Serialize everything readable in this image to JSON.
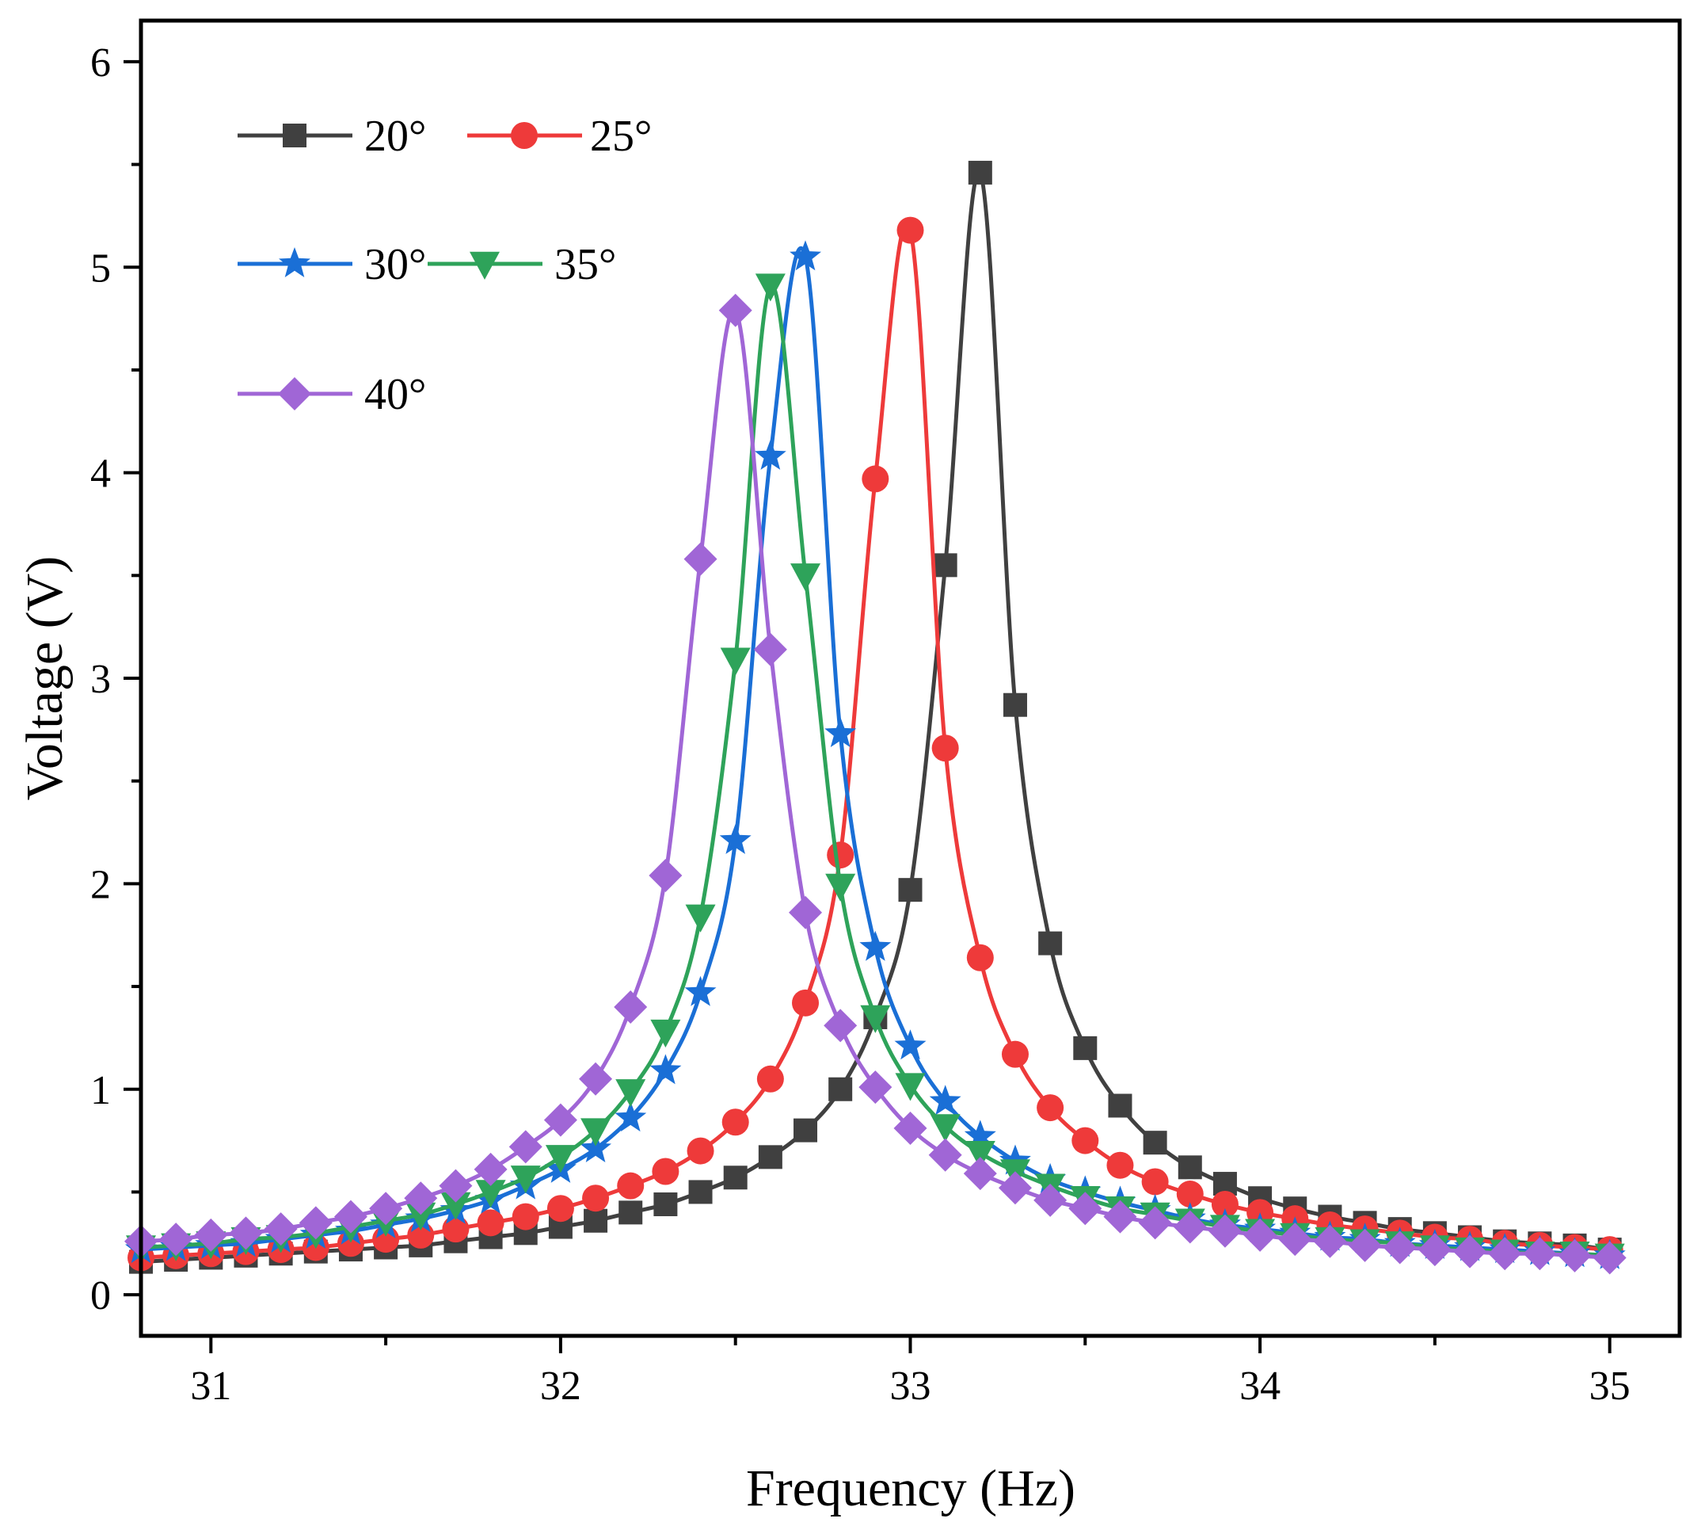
{
  "chart_data": {
    "type": "line",
    "title": "",
    "xlabel": "Frequency (Hz)",
    "ylabel": "Voltage (V)",
    "xlim": [
      30.8,
      35.2
    ],
    "ylim": [
      -0.2,
      6.2
    ],
    "xticks": [
      31,
      32,
      33,
      34,
      35
    ],
    "xtick_labels": [
      "31",
      "32",
      "33",
      "34",
      "35"
    ],
    "yticks": [
      0,
      1,
      2,
      3,
      4,
      5,
      6
    ],
    "ytick_labels": [
      "0",
      "1",
      "2",
      "3",
      "4",
      "5",
      "6"
    ],
    "grid": false,
    "legend_position": "top-left",
    "x": [
      30.8,
      30.9,
      31.0,
      31.1,
      31.2,
      31.3,
      31.4,
      31.5,
      31.6,
      31.7,
      31.8,
      31.9,
      32.0,
      32.1,
      32.2,
      32.3,
      32.4,
      32.5,
      32.6,
      32.7,
      32.8,
      32.9,
      33.0,
      33.1,
      33.2,
      33.3,
      33.4,
      33.5,
      33.6,
      33.7,
      33.8,
      33.9,
      34.0,
      34.1,
      34.2,
      34.3,
      34.4,
      34.5,
      34.6,
      34.7,
      34.8,
      34.9,
      35.0
    ],
    "series": [
      {
        "name": "20°",
        "color": "#404040",
        "marker": "square",
        "values": [
          0.16,
          0.17,
          0.18,
          0.19,
          0.2,
          0.21,
          0.22,
          0.23,
          0.24,
          0.26,
          0.28,
          0.3,
          0.33,
          0.36,
          0.4,
          0.44,
          0.5,
          0.57,
          0.67,
          0.8,
          1.0,
          1.35,
          1.97,
          3.55,
          5.46,
          2.87,
          1.71,
          1.2,
          0.92,
          0.74,
          0.62,
          0.54,
          0.47,
          0.42,
          0.38,
          0.35,
          0.32,
          0.3,
          0.28,
          0.26,
          0.25,
          0.24,
          0.22
        ]
      },
      {
        "name": "25°",
        "color": "#ee3a3a",
        "marker": "circle",
        "values": [
          0.18,
          0.19,
          0.2,
          0.21,
          0.22,
          0.23,
          0.25,
          0.27,
          0.29,
          0.32,
          0.35,
          0.38,
          0.42,
          0.47,
          0.53,
          0.6,
          0.7,
          0.84,
          1.05,
          1.42,
          2.14,
          3.97,
          5.18,
          2.66,
          1.64,
          1.17,
          0.91,
          0.75,
          0.63,
          0.55,
          0.49,
          0.44,
          0.4,
          0.37,
          0.34,
          0.32,
          0.3,
          0.28,
          0.27,
          0.25,
          0.24,
          0.23,
          0.22
        ]
      },
      {
        "name": "30°",
        "color": "#1a6fd6",
        "marker": "star",
        "values": [
          0.22,
          0.23,
          0.24,
          0.25,
          0.27,
          0.29,
          0.31,
          0.34,
          0.37,
          0.41,
          0.46,
          0.53,
          0.61,
          0.71,
          0.86,
          1.09,
          1.47,
          2.21,
          4.08,
          5.05,
          2.73,
          1.69,
          1.21,
          0.94,
          0.77,
          0.65,
          0.56,
          0.5,
          0.45,
          0.41,
          0.37,
          0.34,
          0.32,
          0.3,
          0.28,
          0.27,
          0.25,
          0.24,
          0.23,
          0.22,
          0.21,
          0.2,
          0.19
        ]
      },
      {
        "name": "35°",
        "color": "#2ea35a",
        "marker": "triangle-down",
        "values": [
          0.23,
          0.24,
          0.25,
          0.27,
          0.28,
          0.3,
          0.33,
          0.36,
          0.39,
          0.44,
          0.5,
          0.57,
          0.67,
          0.8,
          0.99,
          1.28,
          1.84,
          3.09,
          4.91,
          3.5,
          1.99,
          1.35,
          1.02,
          0.82,
          0.69,
          0.6,
          0.53,
          0.47,
          0.42,
          0.39,
          0.36,
          0.33,
          0.31,
          0.29,
          0.27,
          0.26,
          0.25,
          0.23,
          0.22,
          0.21,
          0.2,
          0.2,
          0.19
        ]
      },
      {
        "name": "40°",
        "color": "#a066d6",
        "marker": "diamond",
        "values": [
          0.26,
          0.27,
          0.29,
          0.3,
          0.32,
          0.35,
          0.38,
          0.42,
          0.47,
          0.53,
          0.61,
          0.72,
          0.85,
          1.05,
          1.4,
          2.04,
          3.58,
          4.79,
          3.14,
          1.86,
          1.31,
          1.01,
          0.81,
          0.68,
          0.59,
          0.52,
          0.46,
          0.42,
          0.38,
          0.35,
          0.33,
          0.31,
          0.29,
          0.27,
          0.26,
          0.24,
          0.23,
          0.22,
          0.21,
          0.2,
          0.2,
          0.19,
          0.18
        ]
      }
    ]
  }
}
